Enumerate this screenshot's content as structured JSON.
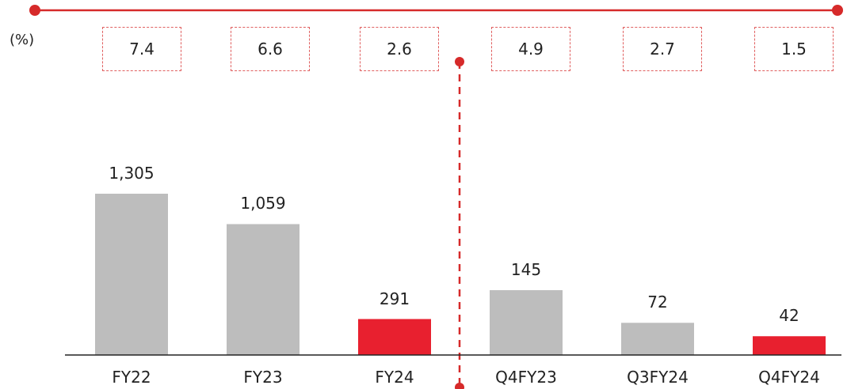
{
  "chart_data": {
    "type": "bar",
    "categories": [
      "FY22",
      "FY23",
      "FY24",
      "Q4FY23",
      "Q3FY24",
      "Q4FY24"
    ],
    "values": [
      1305,
      1059,
      291,
      145,
      72,
      42
    ],
    "value_labels": [
      "1,305",
      "1,059",
      "291",
      "145",
      "72",
      "42"
    ],
    "percent_unit": "(%)",
    "percent_values": [
      "7.4",
      "6.6",
      "2.6",
      "4.9",
      "2.7",
      "1.5"
    ],
    "groups": [
      {
        "scale_max": 1305,
        "indices": [
          0,
          1,
          2
        ]
      },
      {
        "scale_max": 145,
        "indices": [
          3,
          4,
          5
        ]
      }
    ],
    "colors": [
      "#bdbdbd",
      "#bdbdbd",
      "#e8202f",
      "#bdbdbd",
      "#bdbdbd",
      "#e8202f"
    ],
    "accent": "#e02b30"
  }
}
